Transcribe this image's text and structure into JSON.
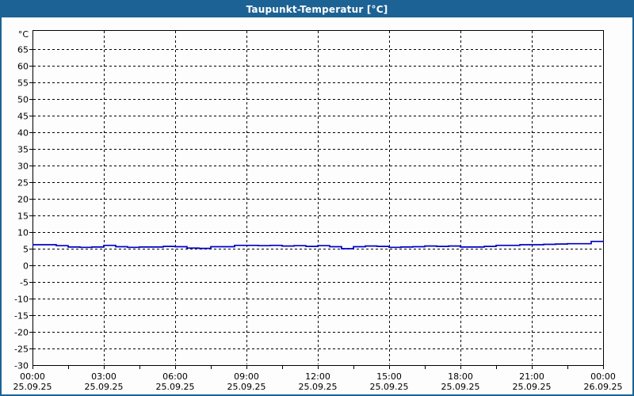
{
  "window": {
    "title": "Taupunkt-Temperatur [°C]"
  },
  "colors": {
    "titlebar_bg": "#1D6294",
    "titlebar_text": "#FFFFFF",
    "window_border": "#1D6294",
    "page_background": "#FDFDFD",
    "axis": "#000000",
    "grid": "#000000",
    "line": "#0000C8"
  },
  "chart_data": {
    "type": "line",
    "title": "Taupunkt-Temperatur [°C]",
    "xlabel": "",
    "ylabel": "°C",
    "ylim": [
      -30,
      70
    ],
    "grid": "dashed",
    "legend_position": "none",
    "y_tick_values": [
      65,
      60,
      55,
      50,
      45,
      40,
      35,
      30,
      25,
      20,
      15,
      10,
      5,
      0,
      -5,
      -10,
      -15,
      -20,
      -25,
      -30
    ],
    "x_major_gridline_hours": [
      3,
      6,
      9,
      12,
      15,
      18,
      21
    ],
    "x_minor_tick_interval_hours": 1.5,
    "x_ticks": [
      {
        "hour": 0,
        "time": "00:00",
        "date": "25.09.25"
      },
      {
        "hour": 3,
        "time": "03:00",
        "date": "25.09.25"
      },
      {
        "hour": 6,
        "time": "06:00",
        "date": "25.09.25"
      },
      {
        "hour": 9,
        "time": "09:00",
        "date": "25.09.25"
      },
      {
        "hour": 12,
        "time": "12:00",
        "date": "25.09.25"
      },
      {
        "hour": 15,
        "time": "15:00",
        "date": "25.09.25"
      },
      {
        "hour": 18,
        "time": "18:00",
        "date": "25.09.25"
      },
      {
        "hour": 21,
        "time": "21:00",
        "date": "25.09.25"
      },
      {
        "hour": 24,
        "time": "00:00",
        "date": "26.09.25"
      }
    ],
    "series": [
      {
        "name": "Taupunkt-Temperatur",
        "color": "#0000C8",
        "x_hours": [
          0,
          0.5,
          1,
          1.5,
          2,
          2.5,
          3,
          3.5,
          4,
          4.5,
          5,
          5.5,
          6,
          6.5,
          7,
          7.5,
          8,
          8.5,
          9,
          9.5,
          10,
          10.5,
          11,
          11.5,
          12,
          12.5,
          13,
          13.5,
          14,
          14.5,
          15,
          15.5,
          16,
          16.5,
          17,
          17.5,
          18,
          18.5,
          19,
          19.5,
          20,
          20.5,
          21,
          21.5,
          22,
          22.5,
          23,
          23.5,
          24
        ],
        "values": [
          6.2,
          6.2,
          5.9,
          5.5,
          5.4,
          5.5,
          6.0,
          5.6,
          5.4,
          5.5,
          5.5,
          5.7,
          5.6,
          5.2,
          5.1,
          5.6,
          5.6,
          6.0,
          6.0,
          5.9,
          6.0,
          5.8,
          5.9,
          5.7,
          5.9,
          5.6,
          5.0,
          5.6,
          5.8,
          5.7,
          5.4,
          5.5,
          5.6,
          5.8,
          5.7,
          5.8,
          5.5,
          5.5,
          5.7,
          6.0,
          6.0,
          6.2,
          6.2,
          6.3,
          6.4,
          6.5,
          6.5,
          7.2,
          7.3
        ]
      }
    ]
  }
}
